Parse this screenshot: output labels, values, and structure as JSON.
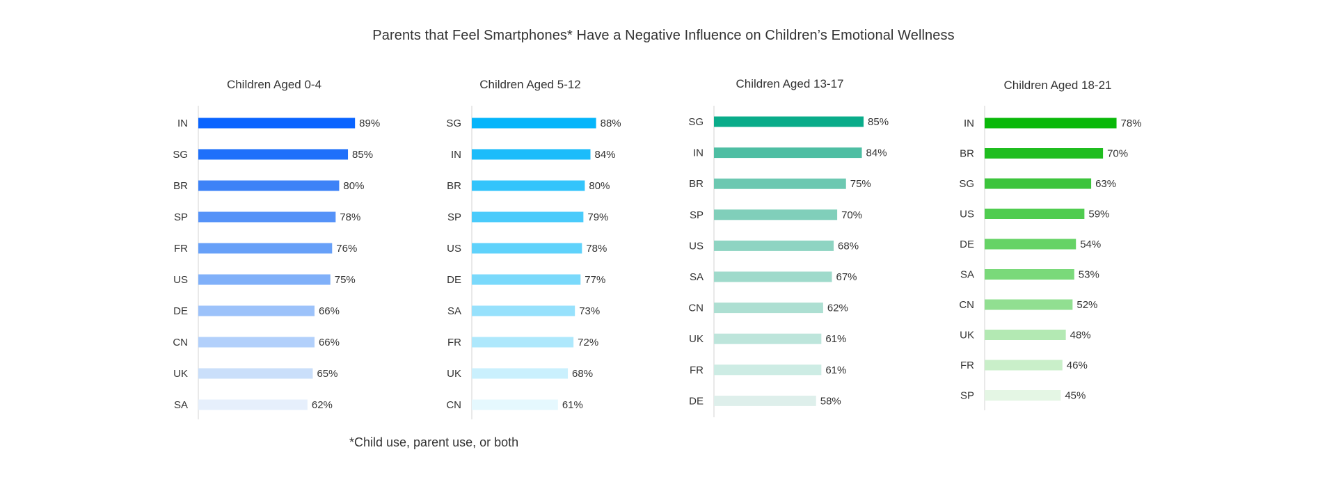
{
  "title": "Parents that Feel Smartphones* Have a Negative Influence on Children’s Emotional Wellness",
  "footnote": "*Child use, parent use, or both",
  "chart_data": [
    {
      "type": "bar",
      "orientation": "horizontal",
      "title": "Children Aged 0-4",
      "categories": [
        "IN",
        "SG",
        "BR",
        "SP",
        "FR",
        "US",
        "DE",
        "CN",
        "UK",
        "SA"
      ],
      "values": [
        89,
        85,
        80,
        78,
        76,
        75,
        66,
        66,
        65,
        62
      ],
      "labels": [
        "89%",
        "85%",
        "80%",
        "78%",
        "76%",
        "75%",
        "66%",
        "66%",
        "65%",
        "62%"
      ],
      "unit": "%",
      "colors": [
        "#0a64ff",
        "#1f70fa",
        "#3d82f7",
        "#5592f8",
        "#67a0f8",
        "#80b0f9",
        "#9cc2fa",
        "#b2d0fb",
        "#cadffa",
        "#e6effc"
      ]
    },
    {
      "type": "bar",
      "orientation": "horizontal",
      "title": "Children Aged 5-12",
      "categories": [
        "SG",
        "IN",
        "BR",
        "SP",
        "US",
        "DE",
        "SA",
        "FR",
        "UK",
        "CN"
      ],
      "values": [
        88,
        84,
        80,
        79,
        78,
        77,
        73,
        72,
        68,
        61
      ],
      "labels": [
        "88%",
        "84%",
        "80%",
        "79%",
        "78%",
        "77%",
        "73%",
        "72%",
        "68%",
        "61%"
      ],
      "unit": "%",
      "colors": [
        "#05b5fa",
        "#1cbcfa",
        "#33c4fb",
        "#4acbfb",
        "#5fd2fb",
        "#7ad9fb",
        "#97e1fc",
        "#aee8fc",
        "#caf0fd",
        "#e5f8fe"
      ]
    },
    {
      "type": "bar",
      "orientation": "horizontal",
      "title": "Children Aged 13-17",
      "categories": [
        "SG",
        "IN",
        "BR",
        "SP",
        "US",
        "SA",
        "CN",
        "UK",
        "FR",
        "DE"
      ],
      "values": [
        85,
        84,
        75,
        70,
        68,
        67,
        62,
        61,
        61,
        58
      ],
      "labels": [
        "85%",
        "84%",
        "75%",
        "70%",
        "68%",
        "67%",
        "62%",
        "61%",
        "61%",
        "58%"
      ],
      "unit": "%",
      "colors": [
        "#0aac8a",
        "#4ebea3",
        "#6cc8b1",
        "#80cfba",
        "#8ed4c2",
        "#9fdacb",
        "#addfd2",
        "#bde5db",
        "#cdece4",
        "#deefeb"
      ]
    },
    {
      "type": "bar",
      "orientation": "horizontal",
      "title": "Children Aged 18-21",
      "categories": [
        "IN",
        "BR",
        "SG",
        "US",
        "DE",
        "SA",
        "CN",
        "UK",
        "FR",
        "SP"
      ],
      "values": [
        78,
        70,
        63,
        59,
        54,
        53,
        52,
        48,
        46,
        45
      ],
      "labels": [
        "78%",
        "70%",
        "63%",
        "59%",
        "54%",
        "53%",
        "52%",
        "48%",
        "46%",
        "45%"
      ],
      "unit": "%",
      "colors": [
        "#09b809",
        "#1fbd1f",
        "#3cc43c",
        "#4fcc4f",
        "#66d366",
        "#7ad97a",
        "#91df91",
        "#b3e9b3",
        "#c9efc9",
        "#e4f6e4"
      ]
    }
  ]
}
